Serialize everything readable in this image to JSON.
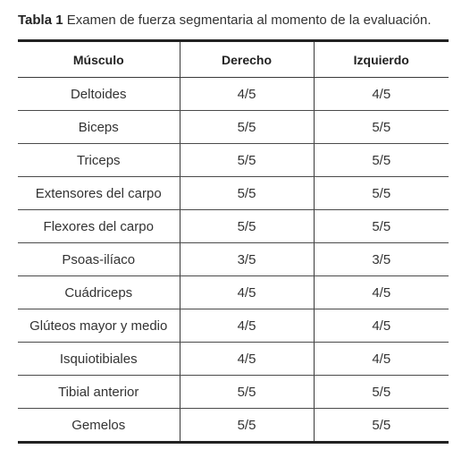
{
  "caption": {
    "label": "Tabla 1",
    "text": "Examen de fuerza segmentaria al momento de la evaluación."
  },
  "table": {
    "headers": [
      "Músculo",
      "Derecho",
      "Izquierdo"
    ],
    "rows": [
      {
        "muscle": "Deltoides",
        "right": "4/5",
        "left": "4/5"
      },
      {
        "muscle": "Biceps",
        "right": "5/5",
        "left": "5/5"
      },
      {
        "muscle": "Triceps",
        "right": "5/5",
        "left": "5/5"
      },
      {
        "muscle": "Extensores del carpo",
        "right": "5/5",
        "left": "5/5"
      },
      {
        "muscle": "Flexores del carpo",
        "right": "5/5",
        "left": "5/5"
      },
      {
        "muscle": "Psoas-ilíaco",
        "right": "3/5",
        "left": "3/5"
      },
      {
        "muscle": "Cuádriceps",
        "right": "4/5",
        "left": "4/5"
      },
      {
        "muscle": "Glúteos mayor y medio",
        "right": "4/5",
        "left": "4/5"
      },
      {
        "muscle": "Isquiotibiales",
        "right": "4/5",
        "left": "4/5"
      },
      {
        "muscle": "Tibial anterior",
        "right": "5/5",
        "left": "5/5"
      },
      {
        "muscle": "Gemelos",
        "right": "5/5",
        "left": "5/5"
      }
    ]
  }
}
